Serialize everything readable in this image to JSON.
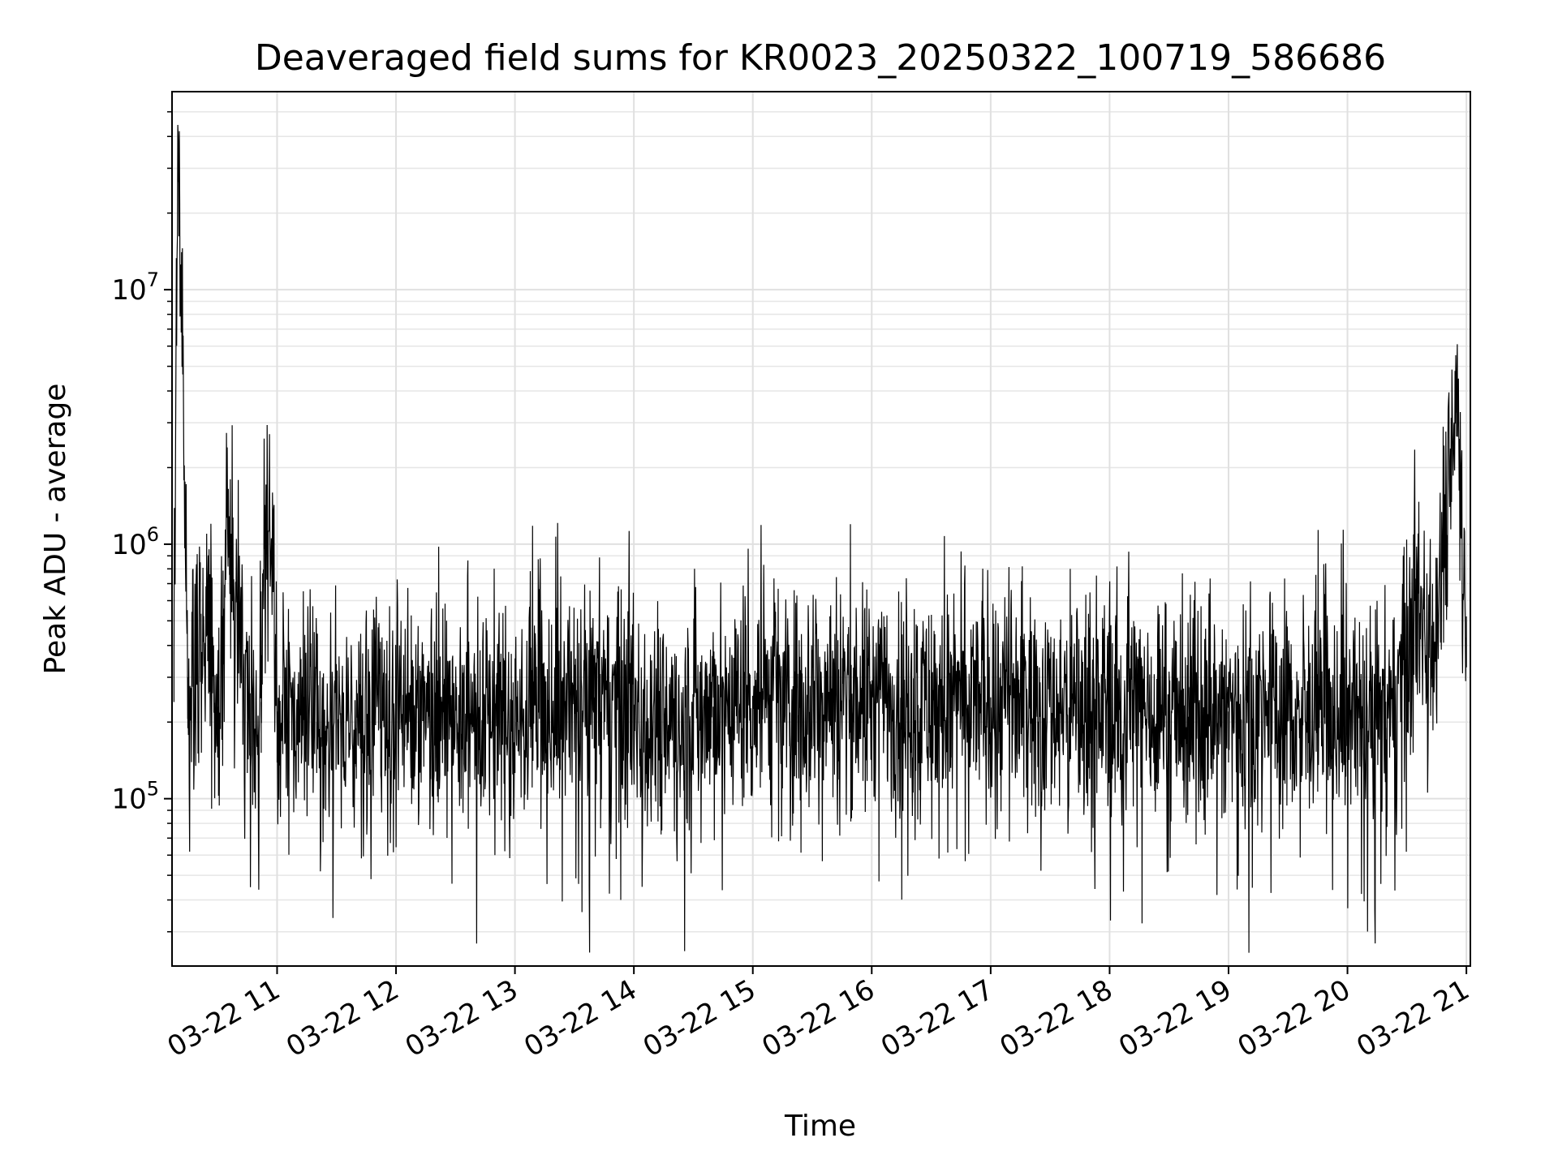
{
  "chart_data": {
    "type": "line",
    "title": "Deaveraged field sums for KR0023_20250322_100719_586686",
    "xlabel": "Time",
    "ylabel": "Peak ADU - average",
    "x_scale": "time",
    "y_scale": "log",
    "xlim": [
      "2025-03-22 10:07",
      "2025-03-22 21:02"
    ],
    "ylim": [
      22000,
      60000000
    ],
    "x_ticks": [
      "03-22 11",
      "03-22 12",
      "03-22 13",
      "03-22 14",
      "03-22 15",
      "03-22 16",
      "03-22 17",
      "03-22 18",
      "03-22 19",
      "03-22 20",
      "03-22 21"
    ],
    "y_ticks": [
      {
        "value": 100000,
        "base": "10",
        "exp": "5"
      },
      {
        "value": 1000000,
        "base": "10",
        "exp": "6"
      },
      {
        "value": 10000000,
        "base": "10",
        "exp": "7"
      }
    ],
    "grid": true,
    "line_color": "#000000",
    "series": [
      {
        "name": "",
        "x": [
          "2025-03-22 10:08",
          "2025-03-22 10:10",
          "2025-03-22 10:15",
          "2025-03-22 10:25",
          "2025-03-22 10:30",
          "2025-03-22 10:36",
          "2025-03-22 10:45",
          "2025-03-22 10:52",
          "2025-03-22 10:55",
          "2025-03-22 11:00",
          "2025-03-22 11:20",
          "2025-03-22 11:40",
          "2025-03-22 12:00",
          "2025-03-22 12:20",
          "2025-03-22 12:40",
          "2025-03-22 13:00",
          "2025-03-22 13:20",
          "2025-03-22 13:40",
          "2025-03-22 14:00",
          "2025-03-22 14:20",
          "2025-03-22 14:40",
          "2025-03-22 15:00",
          "2025-03-22 15:20",
          "2025-03-22 15:40",
          "2025-03-22 16:00",
          "2025-03-22 16:20",
          "2025-03-22 16:40",
          "2025-03-22 17:00",
          "2025-03-22 17:20",
          "2025-03-22 17:40",
          "2025-03-22 18:00",
          "2025-03-22 18:20",
          "2025-03-22 18:40",
          "2025-03-22 19:00",
          "2025-03-22 19:20",
          "2025-03-22 19:40",
          "2025-03-22 20:00",
          "2025-03-22 20:20",
          "2025-03-22 20:35",
          "2025-03-22 20:45",
          "2025-03-22 20:55",
          "2025-03-22 21:00"
        ],
        "y": [
          380000,
          42000000,
          300000,
          550000,
          230000,
          1200000,
          200000,
          240000,
          2000000,
          220000,
          200000,
          190000,
          210000,
          230000,
          220000,
          200000,
          230000,
          250000,
          220000,
          210000,
          230000,
          250000,
          240000,
          260000,
          250000,
          240000,
          230000,
          250000,
          240000,
          230000,
          240000,
          230000,
          210000,
          220000,
          230000,
          200000,
          220000,
          190000,
          500000,
          520000,
          4200000,
          520000
        ]
      }
    ]
  }
}
